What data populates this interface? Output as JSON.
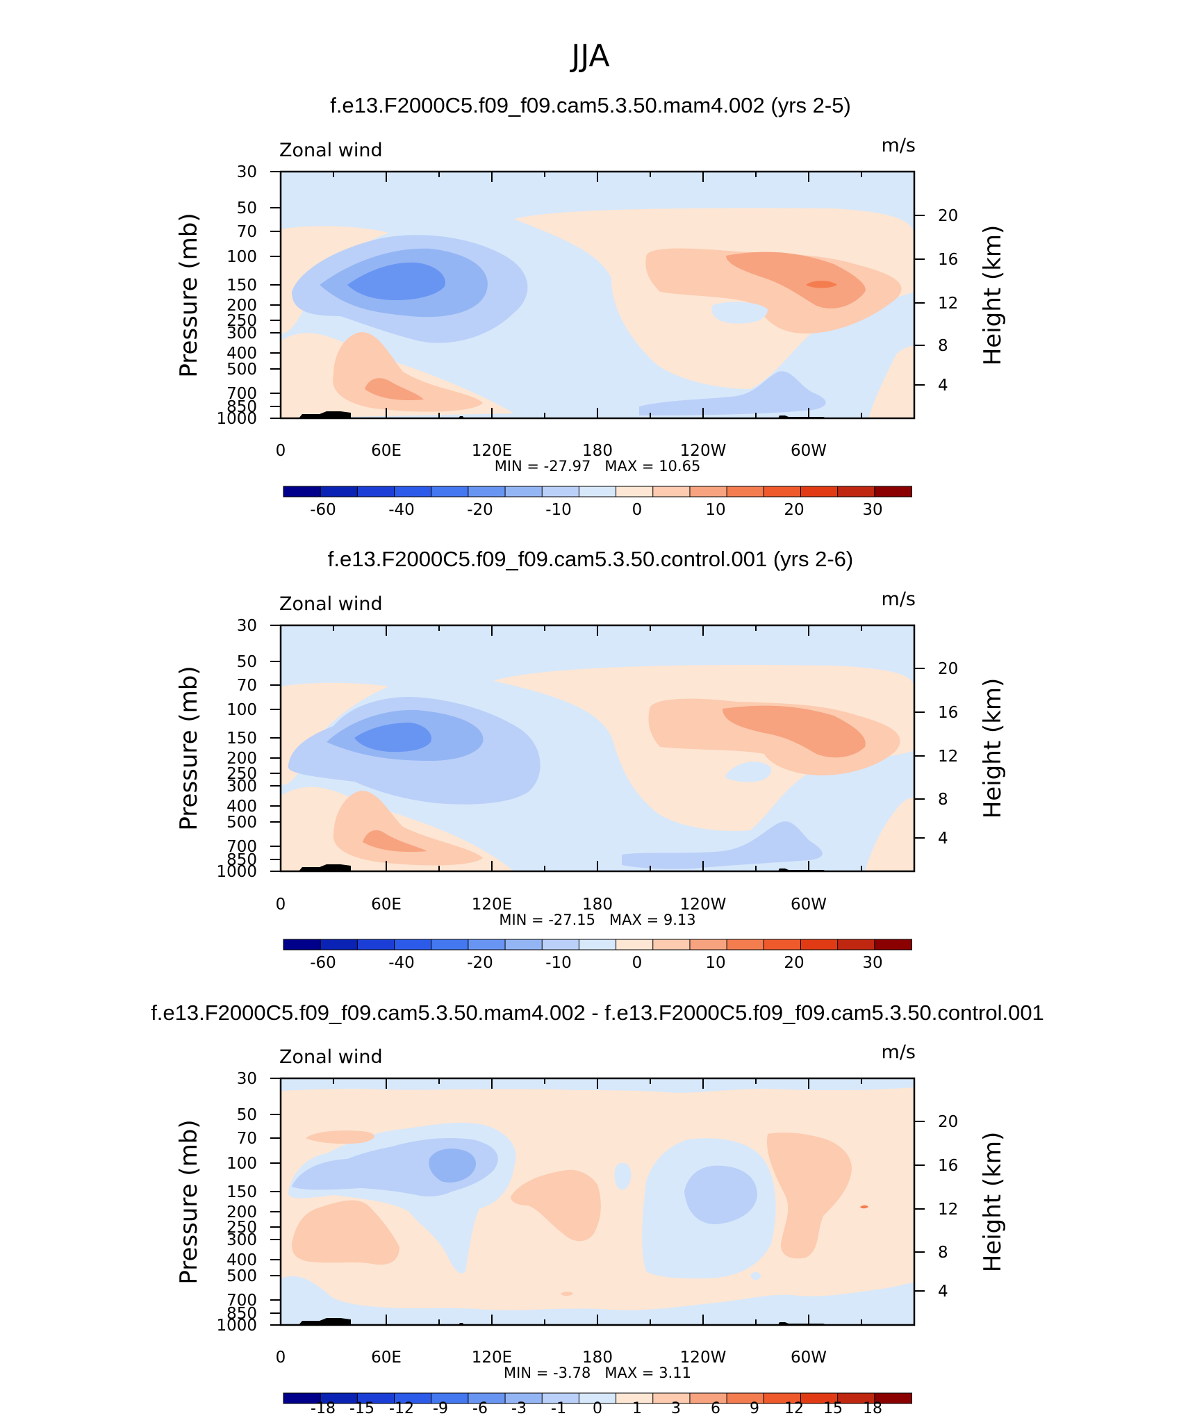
{
  "page_title": "JJA",
  "chart_data": [
    {
      "type": "heatmap",
      "title": "f.e13.F2000C5.f09_f09.cam5.3.50.mam4.002 (yrs 2-5)",
      "variable_label": "Zonal wind",
      "units_label": "m/s",
      "ylabel": "Pressure (mb)",
      "ylabel_right": "Height (km)",
      "x_ticks": [
        "0",
        "60E",
        "120E",
        "180",
        "120W",
        "60W"
      ],
      "y_ticks": [
        "30",
        "50",
        "70",
        "100",
        "150",
        "200",
        "250",
        "300",
        "400",
        "500",
        "700",
        "850",
        "1000"
      ],
      "y_ticks_right": [
        "20",
        "16",
        "12",
        "8",
        "4"
      ],
      "stats": "MIN = -27.97   MAX = 10.65",
      "colorbar_labels": [
        "-60",
        "-40",
        "-20",
        "-10",
        "0",
        "10",
        "20",
        "30"
      ],
      "colorbar_colors": [
        "#00008b",
        "#0a23b4",
        "#1b3fd6",
        "#2c5bea",
        "#4478f0",
        "#6995f2",
        "#94b5f4",
        "#bad0f8",
        "#d7e8fb",
        "#fde6d3",
        "#fccbb0",
        "#f7a37f",
        "#f47d50",
        "#ee5a2c",
        "#e03b14",
        "#c02711",
        "#8b0000"
      ]
    },
    {
      "type": "heatmap",
      "title": "f.e13.F2000C5.f09_f09.cam5.3.50.control.001 (yrs 2-6)",
      "variable_label": "Zonal wind",
      "units_label": "m/s",
      "ylabel": "Pressure (mb)",
      "ylabel_right": "Height (km)",
      "x_ticks": [
        "0",
        "60E",
        "120E",
        "180",
        "120W",
        "60W"
      ],
      "y_ticks": [
        "30",
        "50",
        "70",
        "100",
        "150",
        "200",
        "250",
        "300",
        "400",
        "500",
        "700",
        "850",
        "1000"
      ],
      "y_ticks_right": [
        "20",
        "16",
        "12",
        "8",
        "4"
      ],
      "stats": "MIN = -27.15   MAX = 9.13",
      "colorbar_labels": [
        "-60",
        "-40",
        "-20",
        "-10",
        "0",
        "10",
        "20",
        "30"
      ],
      "colorbar_colors": [
        "#00008b",
        "#0a23b4",
        "#1b3fd6",
        "#2c5bea",
        "#4478f0",
        "#6995f2",
        "#94b5f4",
        "#bad0f8",
        "#d7e8fb",
        "#fde6d3",
        "#fccbb0",
        "#f7a37f",
        "#f47d50",
        "#ee5a2c",
        "#e03b14",
        "#c02711",
        "#8b0000"
      ]
    },
    {
      "type": "heatmap",
      "title": "f.e13.F2000C5.f09_f09.cam5.3.50.mam4.002 - f.e13.F2000C5.f09_f09.cam5.3.50.control.001",
      "variable_label": "Zonal wind",
      "units_label": "m/s",
      "ylabel": "Pressure (mb)",
      "ylabel_right": "Height (km)",
      "x_ticks": [
        "0",
        "60E",
        "120E",
        "180",
        "120W",
        "60W"
      ],
      "y_ticks": [
        "30",
        "50",
        "70",
        "100",
        "150",
        "200",
        "250",
        "300",
        "400",
        "500",
        "700",
        "850",
        "1000"
      ],
      "y_ticks_right": [
        "20",
        "16",
        "12",
        "8",
        "4"
      ],
      "stats": "MIN = -3.78   MAX = 3.11",
      "colorbar_labels": [
        "-18",
        "-15",
        "-12",
        "-9",
        "-6",
        "-3",
        "-1",
        "0",
        "1",
        "3",
        "6",
        "9",
        "12",
        "15",
        "18"
      ],
      "colorbar_colors": [
        "#00008b",
        "#0a23b4",
        "#1b3fd6",
        "#2c5bea",
        "#4478f0",
        "#6995f2",
        "#94b5f4",
        "#bad0f8",
        "#d7e8fb",
        "#fde6d3",
        "#fccbb0",
        "#f7a37f",
        "#f47d50",
        "#ee5a2c",
        "#e03b14",
        "#c02711",
        "#8b0000"
      ]
    }
  ]
}
